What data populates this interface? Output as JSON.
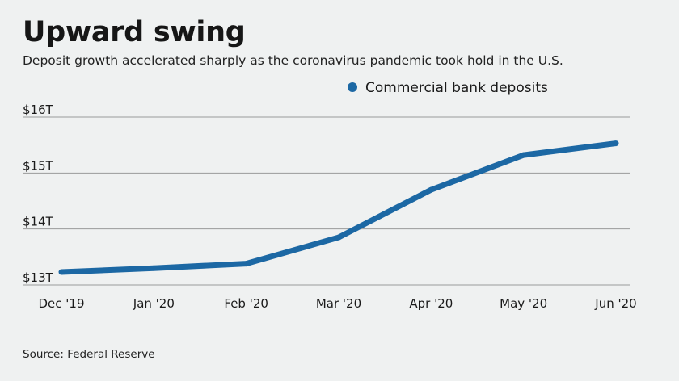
{
  "header": {
    "title": "Upward swing",
    "subtitle": "Deposit growth accelerated sharply as the coronavirus pandemic took hold in the U.S."
  },
  "footer": {
    "source": "Source: Federal Reserve"
  },
  "colors": {
    "series": "#1c68a4",
    "grid": "#9a9a9a",
    "background": "#eff1f1"
  },
  "chart_data": {
    "type": "line",
    "x": [
      "Dec '19",
      "Jan '20",
      "Feb '20",
      "Mar '20",
      "Apr '20",
      "May '20",
      "Jun '20"
    ],
    "series": [
      {
        "name": "Commercial bank deposits",
        "values": [
          13.23,
          13.3,
          13.38,
          13.85,
          14.7,
          15.32,
          15.53
        ]
      }
    ],
    "y_ticks": [
      13,
      14,
      15,
      16
    ],
    "y_tick_labels": [
      "$13T",
      "$14T",
      "$15T",
      "$16T"
    ],
    "ylim": [
      13,
      16
    ],
    "grid": true,
    "legend_position": "top-right"
  }
}
